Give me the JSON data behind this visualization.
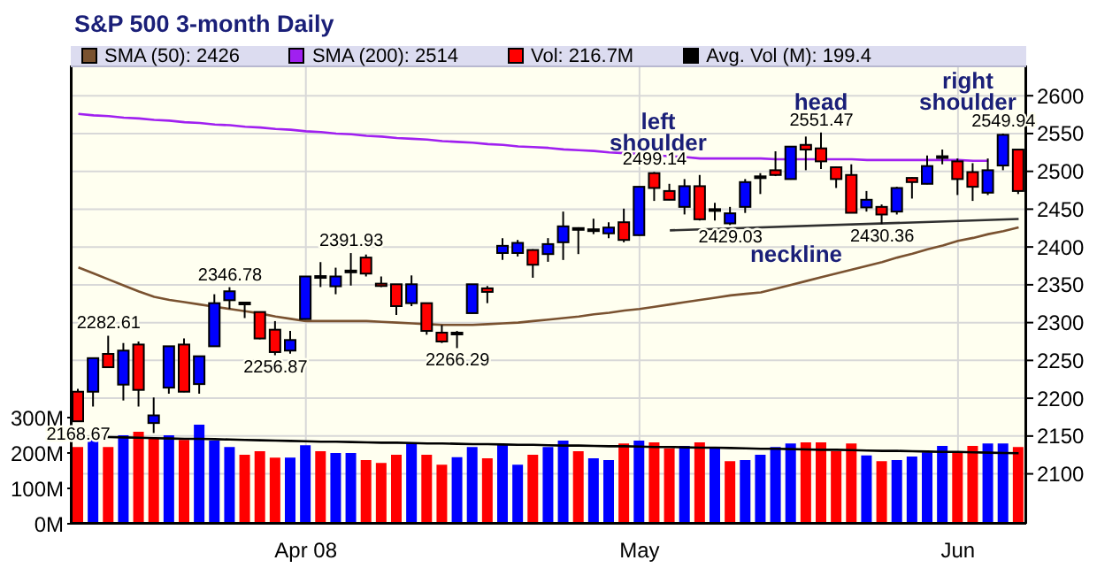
{
  "chart_data": {
    "type": "candlestick",
    "title": "S&P 500 3-month Daily",
    "categories": [
      null,
      null,
      null,
      null,
      null,
      null,
      null,
      null,
      null,
      null,
      null,
      null,
      null,
      null,
      null,
      "Apr 08",
      null,
      null,
      null,
      null,
      null,
      null,
      null,
      null,
      null,
      null,
      null,
      null,
      null,
      null,
      null,
      null,
      null,
      null,
      null,
      null,
      null,
      "May",
      null,
      null,
      null,
      null,
      null,
      null,
      null,
      null,
      null,
      null,
      null,
      null,
      null,
      null,
      null,
      null,
      null,
      null,
      null,
      null,
      "Jun",
      null,
      null,
      null,
      null
    ],
    "ohlc": [
      [
        2208.6,
        2212.5,
        2168.67,
        2169.5
      ],
      [
        2208.6,
        2253,
        2189,
        2253
      ],
      [
        2258.6,
        2282.61,
        2240,
        2241
      ],
      [
        2218,
        2273,
        2197,
        2263
      ],
      [
        2271,
        2275,
        2189,
        2211
      ],
      [
        2167.2,
        2201,
        2154,
        2177.3
      ],
      [
        2214,
        2269,
        2206,
        2268.7
      ],
      [
        2271,
        2279,
        2208,
        2208.6
      ],
      [
        2218.7,
        2256,
        2206,
        2255.5
      ],
      [
        2268.7,
        2337.5,
        2268,
        2325.7
      ],
      [
        2329.6,
        2346.78,
        2318,
        2341.4
      ],
      [
        2325.7,
        2327.3,
        2306,
        2326.5
      ],
      [
        2314,
        2314,
        2278,
        2279
      ],
      [
        2290.6,
        2302,
        2256.87,
        2261
      ],
      [
        2263,
        2289,
        2259,
        2277
      ],
      [
        2304.7,
        2361,
        2304,
        2361
      ],
      [
        2361,
        2380,
        2347,
        2361.5
      ],
      [
        2348,
        2372.6,
        2337.5,
        2361
      ],
      [
        2368.8,
        2391.93,
        2349,
        2368
      ],
      [
        2386,
        2390,
        2361,
        2364.8
      ],
      [
        2351.5,
        2361,
        2347,
        2348.4
      ],
      [
        2350.7,
        2351,
        2310,
        2321.8
      ],
      [
        2325.7,
        2362.4,
        2321.8,
        2350.7
      ],
      [
        2325.7,
        2326,
        2284,
        2289
      ],
      [
        2286.7,
        2296.8,
        2273,
        2275
      ],
      [
        2286.7,
        2289,
        2266.29,
        2285
      ],
      [
        2312.5,
        2351,
        2312,
        2350.7
      ],
      [
        2345.3,
        2348.4,
        2325.7,
        2340.6
      ],
      [
        2392,
        2411.7,
        2382.8,
        2401.5
      ],
      [
        2392,
        2409.3,
        2387.4,
        2405.4
      ],
      [
        2396,
        2397,
        2359.3,
        2376.5
      ],
      [
        2390.6,
        2411.7,
        2380.4,
        2403.8
      ],
      [
        2406.2,
        2446.8,
        2382.8,
        2427.3
      ],
      [
        2425,
        2426,
        2390.6,
        2424
      ],
      [
        2421,
        2437.4,
        2417,
        2423.4
      ],
      [
        2418,
        2432.7,
        2411.7,
        2425.7
      ],
      [
        2432.7,
        2450.7,
        2406.2,
        2409.3
      ],
      [
        2415.6,
        2480,
        2415,
        2479.6
      ],
      [
        2497.6,
        2499.14,
        2460.9,
        2478
      ],
      [
        2474,
        2483.5,
        2462,
        2462.4
      ],
      [
        2453,
        2489.8,
        2443,
        2480.4
      ],
      [
        2480.4,
        2495.2,
        2435,
        2436.6
      ],
      [
        2450,
        2458.5,
        2435,
        2449
      ],
      [
        2431.2,
        2453,
        2429.03,
        2444.5
      ],
      [
        2453,
        2489.8,
        2445,
        2485.8
      ],
      [
        2492,
        2497.6,
        2470,
        2493.4
      ],
      [
        2501.5,
        2526.5,
        2493.7,
        2495.2
      ],
      [
        2489.8,
        2533,
        2489,
        2532.7
      ],
      [
        2535,
        2546,
        2501.5,
        2528.8
      ],
      [
        2530.4,
        2551.47,
        2503,
        2513.2
      ],
      [
        2505.4,
        2506,
        2478,
        2489.8
      ],
      [
        2495.2,
        2509.3,
        2445,
        2445.2
      ],
      [
        2452.3,
        2474,
        2446.8,
        2462.4
      ],
      [
        2453,
        2456.2,
        2430.36,
        2442.9
      ],
      [
        2446.8,
        2479.6,
        2442.9,
        2478
      ],
      [
        2491.3,
        2492,
        2464,
        2485.8
      ],
      [
        2483.5,
        2521,
        2483,
        2507
      ],
      [
        2518.6,
        2528.8,
        2509.3,
        2520
      ],
      [
        2513.2,
        2517,
        2468.7,
        2489.8
      ],
      [
        2499,
        2510.8,
        2460.9,
        2479.6
      ],
      [
        2471.8,
        2517,
        2468.7,
        2501.5
      ],
      [
        2507.7,
        2549.94,
        2501.5,
        2548.3
      ],
      [
        2528.8,
        2529,
        2470,
        2474
      ]
    ],
    "colors": [
      "#ff0000",
      "#0000ff",
      "#ff0000",
      "#0000ff",
      "#ff0000",
      "#0000ff",
      "#0000ff",
      "#ff0000",
      "#0000ff",
      "#0000ff",
      "#0000ff",
      "#000000",
      "#ff0000",
      "#ff0000",
      "#0000ff",
      "#0000ff",
      "#000000",
      "#0000ff",
      "#000000",
      "#ff0000",
      "#ff0000",
      "#ff0000",
      "#0000ff",
      "#ff0000",
      "#ff0000",
      "#000000",
      "#0000ff",
      "#ff0000",
      "#0000ff",
      "#0000ff",
      "#ff0000",
      "#0000ff",
      "#0000ff",
      "#000000",
      "#000000",
      "#0000ff",
      "#ff0000",
      "#0000ff",
      "#ff0000",
      "#ff0000",
      "#0000ff",
      "#ff0000",
      "#000000",
      "#0000ff",
      "#0000ff",
      "#000000",
      "#ff0000",
      "#0000ff",
      "#ff0000",
      "#ff0000",
      "#ff0000",
      "#ff0000",
      "#0000ff",
      "#ff0000",
      "#0000ff",
      "#ff0000",
      "#0000ff",
      "#000000",
      "#ff0000",
      "#ff0000",
      "#0000ff",
      "#0000ff",
      "#ff0000"
    ],
    "series": [
      {
        "type": "line",
        "name": "SMA (50): 2426",
        "color": "#7a5230",
        "values": [
          2373,
          2365,
          2357,
          2349,
          2341,
          2334,
          2330,
          2327,
          2324,
          2321,
          2318,
          2315,
          2312,
          2308,
          2305,
          2302,
          2302,
          2302,
          2302,
          2302,
          2301,
          2300,
          2299,
          2298,
          2297,
          2297,
          2297,
          2298,
          2299,
          2300,
          2302,
          2304,
          2306,
          2308,
          2311,
          2313,
          2316,
          2318,
          2321,
          2324,
          2327,
          2330,
          2333,
          2336,
          2338,
          2340,
          2345,
          2350,
          2355,
          2360,
          2365,
          2370,
          2375,
          2380,
          2386,
          2391,
          2397,
          2402,
          2408,
          2412,
          2417,
          2421,
          2426
        ]
      },
      {
        "type": "line",
        "name": "SMA (200): 2514",
        "color": "#a020f0",
        "values": [
          2576,
          2574,
          2573,
          2571,
          2570,
          2568,
          2567,
          2565,
          2564,
          2562,
          2561,
          2559,
          2558,
          2556,
          2555,
          2553,
          2552,
          2550,
          2549,
          2547,
          2546,
          2544,
          2543,
          2542,
          2540,
          2539,
          2538,
          2536,
          2535,
          2533,
          2532,
          2531,
          2529,
          2528,
          2527,
          2525,
          2524,
          2523,
          2521,
          2520,
          2519,
          2517,
          2517,
          2517,
          2517,
          2517,
          2516,
          2516,
          2516,
          2516,
          2516,
          2516,
          2515,
          2515,
          2515,
          2515,
          2515,
          2515,
          2515,
          2514,
          2514,
          null,
          null
        ]
      },
      {
        "type": "bar",
        "axis": "y2",
        "name": "Vol: 216.7M",
        "color": "#ff0000",
        "colors": [
          "#ff0000",
          "#0000ff",
          "#ff0000",
          "#0000ff",
          "#ff0000",
          "#ff0000",
          "#0000ff",
          "#ff0000",
          "#0000ff",
          "#0000ff",
          "#0000ff",
          "#ff0000",
          "#ff0000",
          "#ff0000",
          "#0000ff",
          "#0000ff",
          "#ff0000",
          "#0000ff",
          "#0000ff",
          "#ff0000",
          "#ff0000",
          "#ff0000",
          "#0000ff",
          "#ff0000",
          "#ff0000",
          "#0000ff",
          "#0000ff",
          "#ff0000",
          "#0000ff",
          "#0000ff",
          "#ff0000",
          "#0000ff",
          "#0000ff",
          "#ff0000",
          "#0000ff",
          "#0000ff",
          "#ff0000",
          "#0000ff",
          "#ff0000",
          "#ff0000",
          "#0000ff",
          "#ff0000",
          "#0000ff",
          "#ff0000",
          "#0000ff",
          "#0000ff",
          "#0000ff",
          "#0000ff",
          "#ff0000",
          "#ff0000",
          "#ff0000",
          "#ff0000",
          "#0000ff",
          "#ff0000",
          "#0000ff",
          "#0000ff",
          "#0000ff",
          "#0000ff",
          "#ff0000",
          "#ff0000",
          "#0000ff",
          "#0000ff",
          "#ff0000"
        ],
        "values": [
          217,
          247,
          217,
          250,
          260,
          240,
          250,
          237,
          280,
          235,
          217,
          195,
          205,
          187,
          187,
          222,
          205,
          200,
          200,
          180,
          172,
          195,
          227,
          195,
          167,
          188,
          217,
          185,
          225,
          167,
          195,
          217,
          235,
          205,
          185,
          180,
          227,
          235,
          230,
          213,
          220,
          230,
          213,
          177,
          180,
          195,
          217,
          227,
          230,
          230,
          205,
          227,
          193,
          177,
          180,
          190,
          202,
          220,
          202,
          220,
          227,
          227,
          216.7
        ]
      },
      {
        "type": "line",
        "axis": "y2",
        "name": "Avg. Vol (M): 199.4",
        "color": "#000000",
        "values": [
          247,
          246,
          245,
          244,
          243,
          242,
          241,
          240,
          240,
          239,
          238,
          237,
          236,
          235,
          234,
          233,
          232,
          232,
          231,
          230,
          229,
          229,
          228,
          227,
          227,
          226,
          225,
          225,
          224,
          223,
          223,
          222,
          221,
          221,
          220,
          219,
          219,
          218,
          217,
          217,
          216,
          215,
          215,
          214,
          213,
          212,
          212,
          211,
          210,
          209,
          209,
          208,
          207,
          206,
          206,
          205,
          204,
          203,
          203,
          202,
          201,
          200,
          199.4
        ]
      },
      {
        "type": "line",
        "color": "#303030",
        "values": [
          null,
          null,
          null,
          null,
          null,
          null,
          null,
          null,
          null,
          null,
          null,
          null,
          null,
          null,
          null,
          null,
          null,
          null,
          null,
          null,
          null,
          null,
          null,
          null,
          null,
          null,
          null,
          null,
          null,
          null,
          null,
          null,
          null,
          null,
          null,
          null,
          null,
          null,
          null,
          2422,
          null,
          null,
          null,
          null,
          null,
          null,
          null,
          null,
          null,
          null,
          null,
          null,
          null,
          null,
          null,
          null,
          null,
          null,
          null,
          null,
          null,
          null,
          2437
        ]
      }
    ],
    "ylim": [
      2034,
      2640
    ],
    "yticks": [
      2100,
      2150,
      2200,
      2250,
      2300,
      2350,
      2400,
      2450,
      2500,
      2550,
      2600
    ],
    "y2lim": [
      0,
      1295
    ],
    "y2ticks": [
      {
        "value": 0,
        "label": "0M"
      },
      {
        "value": 100,
        "label": "100M"
      },
      {
        "value": 200,
        "label": "200M"
      },
      {
        "value": 300,
        "label": "300M"
      }
    ],
    "grid": true,
    "legend": "top",
    "annotations": [
      {
        "text": "2168.67",
        "y": 2168.67
      },
      {
        "text": "2282.61",
        "y": 2282.61
      },
      {
        "text": "2346.78",
        "y": 2346.78
      },
      {
        "text": "2256.87",
        "y": 2256.87
      },
      {
        "text": "2391.93",
        "y": 2391.93
      },
      {
        "text": "2266.29",
        "y": 2266.29
      },
      {
        "text": "2499.14",
        "y": 2499.14
      },
      {
        "text": "2429.03",
        "y": 2429.03
      },
      {
        "text": "2551.47",
        "y": 2551.47
      },
      {
        "text": "2430.36",
        "y": 2430.36
      },
      {
        "text": "2549.94",
        "y": 2549.94
      },
      "left shoulder",
      "head",
      "right shoulder",
      "neckline"
    ]
  }
}
